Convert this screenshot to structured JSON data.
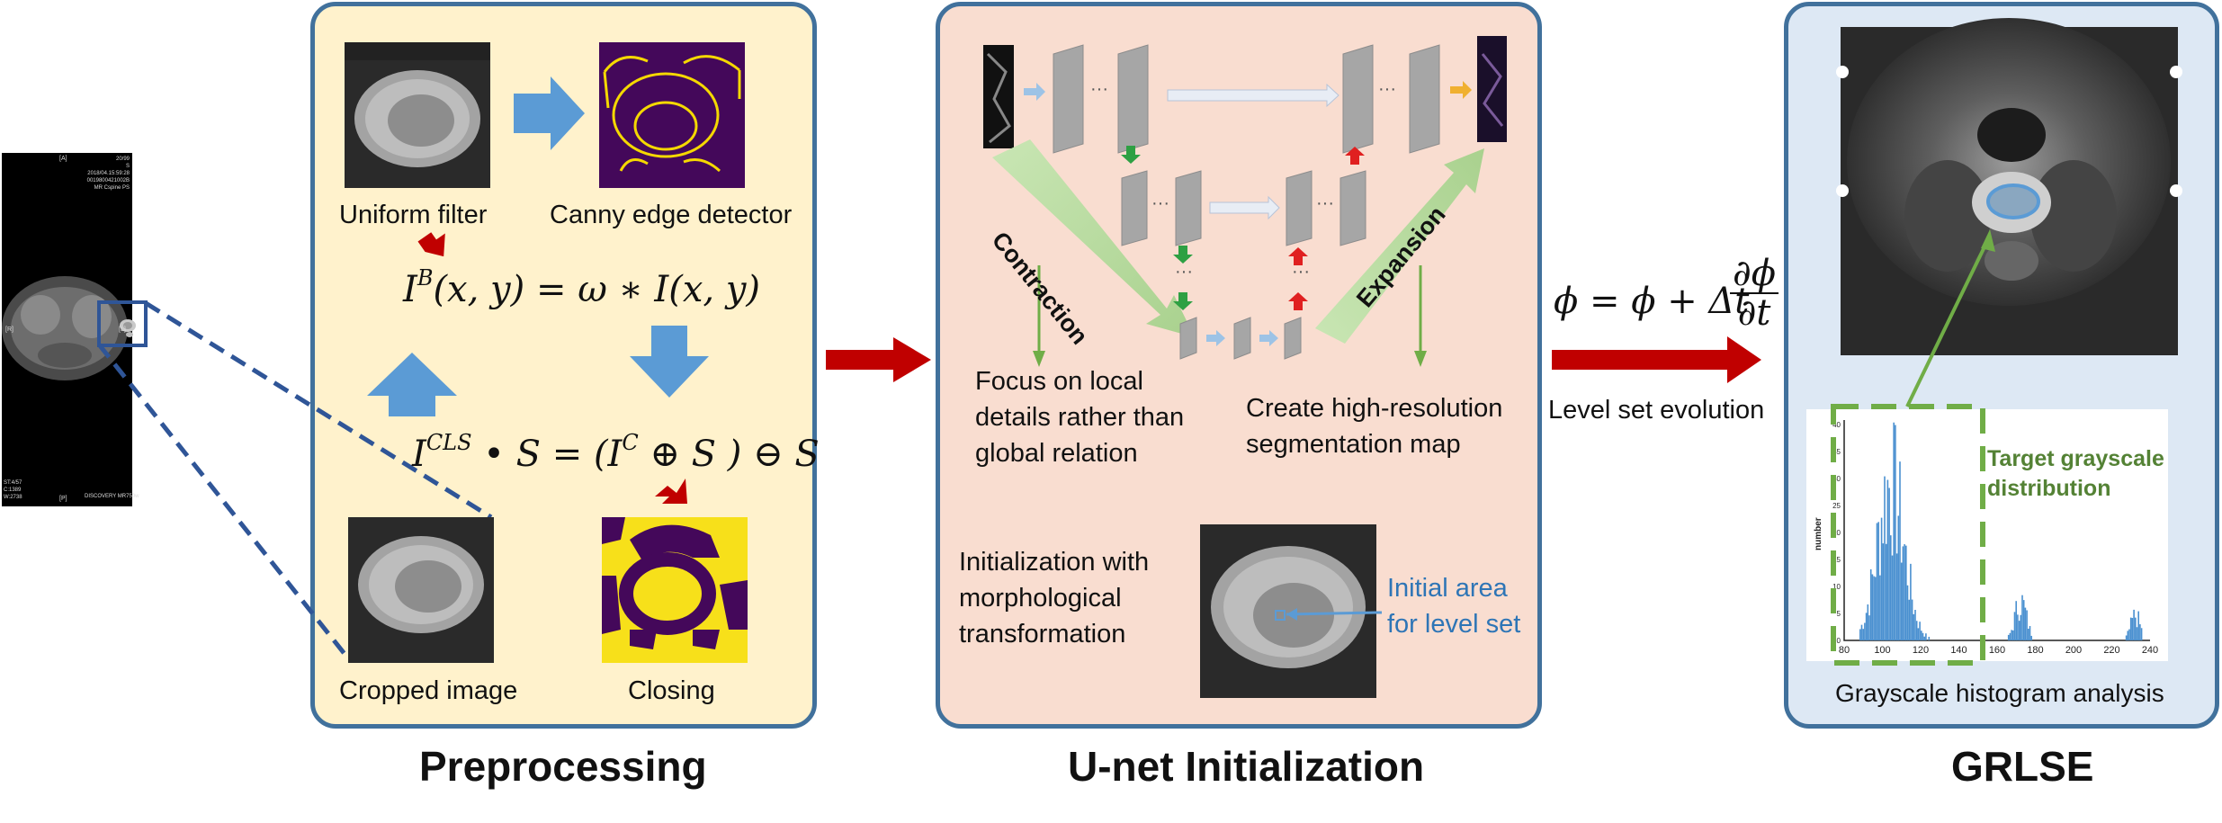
{
  "colors": {
    "panel_border": "#41719c",
    "preprocessing_bg": "#fff2cc",
    "unet_bg": "#f9ddd0",
    "grlse_bg": "#dde8f4",
    "big_arrow": "#c00000",
    "blue_arrow": "#5b9bd5",
    "green_arrow": "#70ad47",
    "dashed_line": "#2f5597",
    "histogram_bar": "#4a90d0",
    "target_text": "#548235"
  },
  "mri": {
    "labels": {
      "a": "[A]",
      "r": "[R]",
      "l": "[L]",
      "p": "[P]",
      "top_right": "20/99\nS\n2018/04.15:59:28\n0019800421002B\nMR Cspine PS",
      "bottom_left": "ST:4/57\nC:1389\nW:2738",
      "bottom_right": "DISCOVERY MR750w"
    }
  },
  "preprocessing": {
    "title": "Preprocessing",
    "uniform_filter": "Uniform filter",
    "canny": "Canny edge detector",
    "cropped": "Cropped image",
    "closing": "Closing",
    "eq1_main": "I",
    "eq1_sup": "B",
    "eq1_rest": "(x, y) = ω ∗ I(x, y)",
    "eq2_main": "I",
    "eq2_sup": "CLS",
    "eq2_mid": "• S = (I",
    "eq2_sup2": "C",
    "eq2_rest": " ⊕ S ) ⊖ S"
  },
  "unet": {
    "title": "U-net Initialization",
    "contraction": "Contraction",
    "expansion": "Expansion",
    "focus": "Focus on local\ndetails rather than\nglobal relation",
    "create": "Create high-resolution\nsegmentation map",
    "init_morph": "Initialization with\nmorphological\ntransformation",
    "initial_area": "Initial area\nfor level set"
  },
  "level_set": {
    "eq_left": "ϕ = ϕ + Δt",
    "eq_num": "∂ϕ",
    "eq_den": "∂t",
    "label": "Level set evolution"
  },
  "grlse": {
    "title": "GRLSE",
    "hist_label": "Grayscale histogram analysis",
    "target": "Target grayscale\ndistribution",
    "ylabel": "number",
    "yticks": [
      "0",
      "5",
      "10",
      "15",
      "20",
      "25",
      "30",
      "35",
      "40"
    ],
    "xticks": [
      "80",
      "100",
      "120",
      "140",
      "160",
      "180",
      "200",
      "220",
      "240"
    ]
  }
}
